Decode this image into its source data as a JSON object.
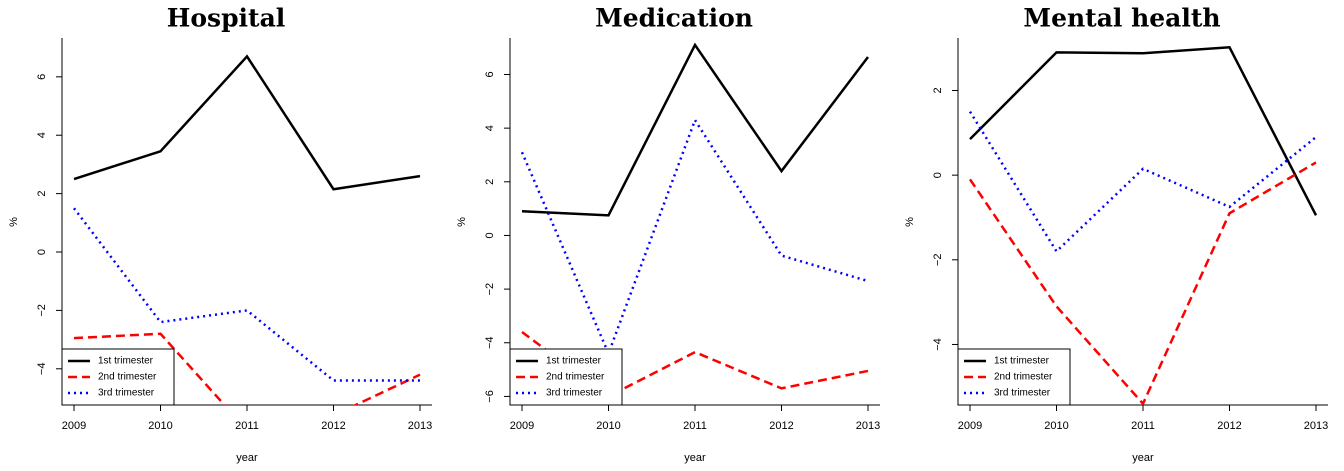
{
  "chart_data": [
    {
      "type": "line",
      "title": "Hospital",
      "x_label": "year",
      "y_label": "%",
      "x": [
        2009,
        2010,
        2011,
        2012,
        2013
      ],
      "xlim": [
        2009,
        2013
      ],
      "xticks": [
        2009,
        2010,
        2011,
        2012,
        2013
      ],
      "ylim": [
        -5.24,
        7.33
      ],
      "yticks": [
        {
          "value": -4,
          "label": "−4"
        },
        {
          "value": -2,
          "label": "−2"
        },
        0,
        2,
        4,
        6
      ],
      "legend": "bottomleft",
      "series": [
        {
          "name": "1st trimester",
          "color": "#000000",
          "dash": "solid",
          "values": [
            2.5,
            3.45,
            6.7,
            2.15,
            2.6
          ]
        },
        {
          "name": "2nd trimester",
          "color": "#ff0000",
          "dash": "dashed",
          "values": [
            -2.95,
            -2.8,
            -6.1,
            -5.6,
            -4.2
          ]
        },
        {
          "name": "3rd trimester",
          "color": "#0000ff",
          "dash": "dotted",
          "values": [
            1.5,
            -2.4,
            -2.0,
            -4.4,
            -4.4
          ]
        }
      ]
    },
    {
      "type": "line",
      "title": "Medication",
      "x_label": "year",
      "y_label": "%",
      "x": [
        2009,
        2010,
        2011,
        2012,
        2013
      ],
      "xlim": [
        2009,
        2013
      ],
      "xticks": [
        2009,
        2010,
        2011,
        2012,
        2013
      ],
      "ylim": [
        -6.32,
        7.36
      ],
      "yticks": [
        {
          "value": -6,
          "label": "−6"
        },
        {
          "value": -4,
          "label": "−4"
        },
        {
          "value": -2,
          "label": "−2"
        },
        0,
        2,
        4,
        6
      ],
      "legend": "bottomleft",
      "series": [
        {
          "name": "1st trimester",
          "color": "#000000",
          "dash": "solid",
          "values": [
            0.9,
            0.75,
            7.1,
            2.4,
            6.65
          ]
        },
        {
          "name": "2nd trimester",
          "color": "#ff0000",
          "dash": "dashed",
          "values": [
            -3.6,
            -6.0,
            -4.35,
            -5.7,
            -5.05
          ]
        },
        {
          "name": "3rd trimester",
          "color": "#0000ff",
          "dash": "dotted",
          "values": [
            3.1,
            -4.4,
            4.3,
            -0.75,
            -1.7
          ]
        }
      ]
    },
    {
      "type": "line",
      "title": "Mental health",
      "x_label": "year",
      "y_label": "%",
      "x": [
        2009,
        2010,
        2011,
        2012,
        2013
      ],
      "xlim": [
        2009,
        2013
      ],
      "xticks": [
        2009,
        2010,
        2011,
        2012,
        2013
      ],
      "ylim": [
        -5.43,
        3.24
      ],
      "yticks": [
        {
          "value": -4,
          "label": "−4"
        },
        {
          "value": -2,
          "label": "−2"
        },
        0,
        2
      ],
      "legend": "bottomleft",
      "series": [
        {
          "name": "1st trimester",
          "color": "#000000",
          "dash": "solid",
          "values": [
            0.85,
            2.9,
            2.88,
            3.02,
            -0.95
          ]
        },
        {
          "name": "2nd trimester",
          "color": "#ff0000",
          "dash": "dashed",
          "values": [
            -0.1,
            -3.1,
            -5.4,
            -0.9,
            0.3
          ]
        },
        {
          "name": "3rd trimester",
          "color": "#0000ff",
          "dash": "dotted",
          "values": [
            1.5,
            -1.8,
            0.15,
            -0.75,
            0.9
          ]
        }
      ]
    }
  ]
}
